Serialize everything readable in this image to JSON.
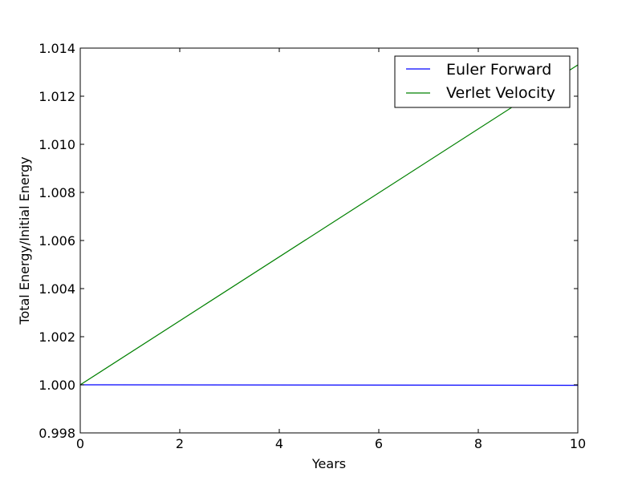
{
  "chart_data": {
    "type": "line",
    "title": "",
    "xlabel": "Years",
    "ylabel": "Total Energy/Initial Energy",
    "xlim": [
      0,
      10
    ],
    "ylim": [
      0.998,
      1.014
    ],
    "xticks": [
      0,
      2,
      4,
      6,
      8,
      10
    ],
    "xtick_labels": [
      "0",
      "2",
      "4",
      "6",
      "8",
      "10"
    ],
    "yticks": [
      0.998,
      1.0,
      1.002,
      1.004,
      1.006,
      1.008,
      1.01,
      1.012,
      1.014
    ],
    "ytick_labels": [
      "0.998",
      "1.000",
      "1.002",
      "1.004",
      "1.006",
      "1.008",
      "1.010",
      "1.012",
      "1.014"
    ],
    "grid": false,
    "legend_position": "top-right",
    "series": [
      {
        "name": "Euler Forward",
        "color": "#0000ff",
        "x": [
          0,
          10
        ],
        "y": [
          1.0,
          0.99998
        ]
      },
      {
        "name": "Verlet Velocity",
        "color": "#008000",
        "x": [
          0,
          10
        ],
        "y": [
          1.0,
          1.0133
        ]
      }
    ]
  }
}
